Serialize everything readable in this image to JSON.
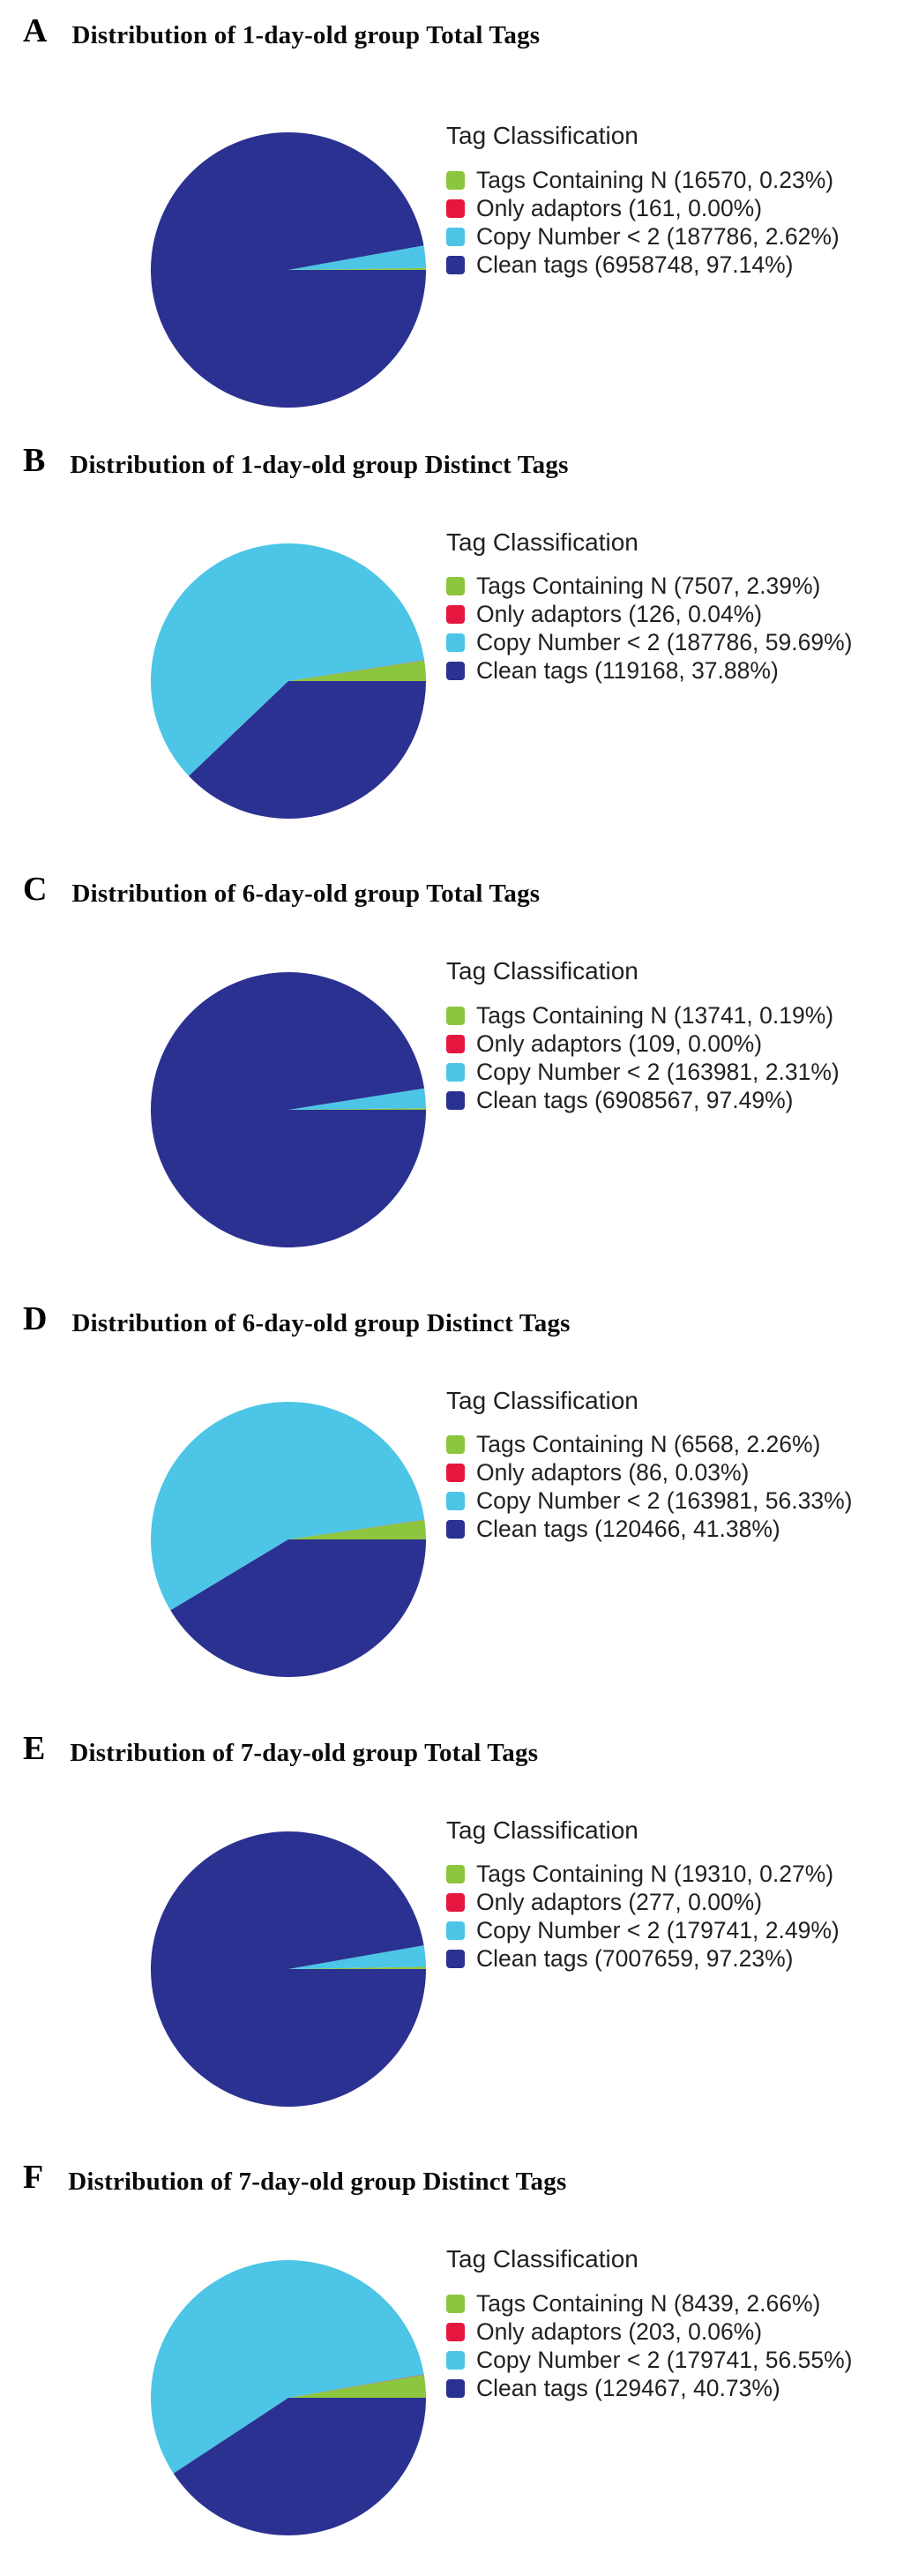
{
  "figure_background": "#ffffff",
  "slice_keys": [
    "tags-containing-n",
    "only-adaptors",
    "copy-number-lt-2",
    "clean-tags"
  ],
  "palette": {
    "green": "#8CC63F",
    "red": "#E5173F",
    "cyan": "#4CC5E6",
    "navy": "#2B3190",
    "text": "#231F20"
  },
  "chart_data": [
    {
      "type": "pie",
      "panel": "A",
      "title": "Distribution of 1-day-old group Total Tags",
      "legend_title": "Tag Classification",
      "legend_position": "right",
      "start_angle_deg": 0,
      "direction": "counterclockwise",
      "categories": [
        "Tags Containing N",
        "Only adaptors",
        "Copy Number < 2",
        "Clean tags"
      ],
      "values": [
        16570,
        161,
        187786,
        6958748
      ],
      "percents": [
        0.23,
        0.0,
        2.62,
        97.14
      ],
      "colors": [
        "#8CC63F",
        "#E5173F",
        "#4CC5E6",
        "#2B3190"
      ],
      "legend_labels": [
        "Tags Containing N (16570, 0.23%)",
        "Only adaptors (161, 0.00%)",
        "Copy Number < 2 (187786, 2.62%)",
        "Clean tags (6958748, 97.14%)"
      ]
    },
    {
      "type": "pie",
      "panel": "B",
      "title": "Distribution of 1-day-old group Distinct Tags",
      "legend_title": "Tag Classification",
      "legend_position": "right",
      "start_angle_deg": 0,
      "direction": "counterclockwise",
      "categories": [
        "Tags Containing N",
        "Only adaptors",
        "Copy Number < 2",
        "Clean tags"
      ],
      "values": [
        7507,
        126,
        187786,
        119168
      ],
      "percents": [
        2.39,
        0.04,
        59.69,
        37.88
      ],
      "colors": [
        "#8CC63F",
        "#E5173F",
        "#4CC5E6",
        "#2B3190"
      ],
      "legend_labels": [
        "Tags Containing N (7507, 2.39%)",
        "Only adaptors (126, 0.04%)",
        "Copy Number < 2 (187786, 59.69%)",
        "Clean tags (119168, 37.88%)"
      ]
    },
    {
      "type": "pie",
      "panel": "C",
      "title": "Distribution of 6-day-old group Total Tags",
      "legend_title": "Tag Classification",
      "legend_position": "right",
      "start_angle_deg": 0,
      "direction": "counterclockwise",
      "categories": [
        "Tags Containing N",
        "Only adaptors",
        "Copy Number < 2",
        "Clean tags"
      ],
      "values": [
        13741,
        109,
        163981,
        6908567
      ],
      "percents": [
        0.19,
        0.0,
        2.31,
        97.49
      ],
      "colors": [
        "#8CC63F",
        "#E5173F",
        "#4CC5E6",
        "#2B3190"
      ],
      "legend_labels": [
        "Tags Containing N (13741, 0.19%)",
        "Only adaptors (109, 0.00%)",
        "Copy Number < 2 (163981, 2.31%)",
        "Clean tags (6908567, 97.49%)"
      ]
    },
    {
      "type": "pie",
      "panel": "D",
      "title": "Distribution of 6-day-old group Distinct Tags",
      "legend_title": "Tag Classification",
      "legend_position": "right",
      "start_angle_deg": 0,
      "direction": "counterclockwise",
      "categories": [
        "Tags Containing N",
        "Only adaptors",
        "Copy Number < 2",
        "Clean tags"
      ],
      "values": [
        6568,
        86,
        163981,
        120466
      ],
      "percents": [
        2.26,
        0.03,
        56.33,
        41.38
      ],
      "colors": [
        "#8CC63F",
        "#E5173F",
        "#4CC5E6",
        "#2B3190"
      ],
      "legend_labels": [
        "Tags Containing N (6568, 2.26%)",
        "Only adaptors (86, 0.03%)",
        "Copy Number < 2 (163981, 56.33%)",
        "Clean tags (120466, 41.38%)"
      ]
    },
    {
      "type": "pie",
      "panel": "E",
      "title": "Distribution of 7-day-old group Total Tags",
      "legend_title": "Tag Classification",
      "legend_position": "right",
      "start_angle_deg": 0,
      "direction": "counterclockwise",
      "categories": [
        "Tags Containing N",
        "Only adaptors",
        "Copy Number < 2",
        "Clean tags"
      ],
      "values": [
        19310,
        277,
        179741,
        7007659
      ],
      "percents": [
        0.27,
        0.0,
        2.49,
        97.23
      ],
      "colors": [
        "#8CC63F",
        "#E5173F",
        "#4CC5E6",
        "#2B3190"
      ],
      "legend_labels": [
        "Tags Containing N (19310, 0.27%)",
        "Only adaptors (277, 0.00%)",
        "Copy Number < 2 (179741, 2.49%)",
        "Clean tags (7007659, 97.23%)"
      ]
    },
    {
      "type": "pie",
      "panel": "F",
      "title": "Distribution of 7-day-old group Distinct Tags",
      "legend_title": "Tag Classification",
      "legend_position": "right",
      "start_angle_deg": 0,
      "direction": "counterclockwise",
      "categories": [
        "Tags Containing N",
        "Only adaptors",
        "Copy Number < 2",
        "Clean tags"
      ],
      "values": [
        8439,
        203,
        179741,
        129467
      ],
      "percents": [
        2.66,
        0.06,
        56.55,
        40.73
      ],
      "colors": [
        "#8CC63F",
        "#E5173F",
        "#4CC5E6",
        "#2B3190"
      ],
      "legend_labels": [
        "Tags Containing N (8439, 2.66%)",
        "Only adaptors (203, 0.06%)",
        "Copy Number < 2 (179741, 56.55%)",
        "Clean tags (129467, 40.73%)"
      ]
    }
  ]
}
